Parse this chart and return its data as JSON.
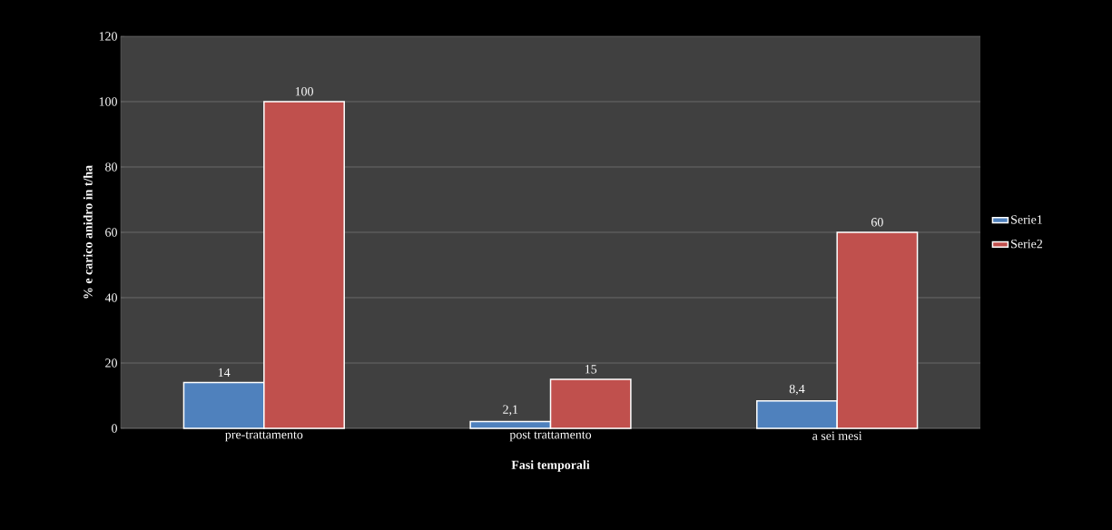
{
  "chart_data": {
    "type": "bar",
    "xlabel": "Fasi temporali",
    "ylabel": "% e  carico anidro in t/ha",
    "categories": [
      "pre-trattamento",
      "post trattamento",
      "a sei mesi"
    ],
    "series": [
      {
        "name": "Serie1",
        "color": "#4f81bd",
        "values": [
          14,
          2.1,
          8.4
        ],
        "value_labels": [
          "14",
          "2,1",
          "8,4"
        ]
      },
      {
        "name": "Serie2",
        "color": "#c0504d",
        "values": [
          100,
          15,
          60
        ],
        "value_labels": [
          "100",
          "15",
          "60"
        ]
      }
    ],
    "ylim": [
      0,
      120
    ],
    "yticks": [
      0,
      20,
      40,
      60,
      80,
      100,
      120
    ],
    "grid": "y",
    "legend": "right"
  }
}
